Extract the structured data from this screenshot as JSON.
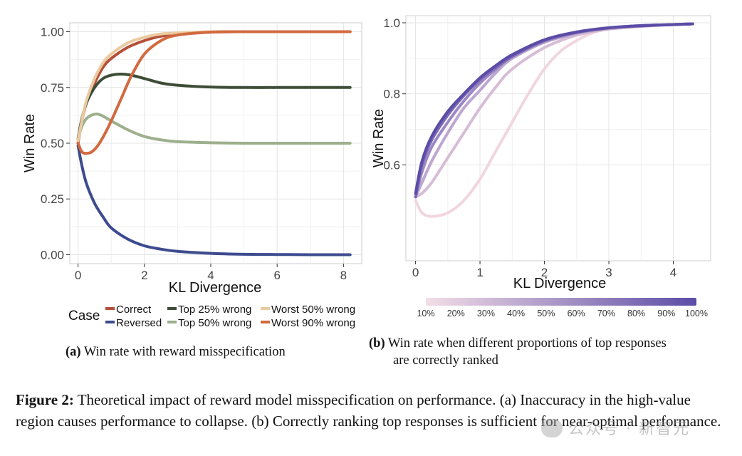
{
  "panel_a": {
    "caption_label": "(a)",
    "caption_text": "Win rate with reward misspecification",
    "legend_title": "Case",
    "legend": [
      {
        "name": "Correct",
        "color": "#B5503A"
      },
      {
        "name": "Reversed",
        "color": "#3D4B8F"
      },
      {
        "name": "Top 25% wrong",
        "color": "#3E4D37"
      },
      {
        "name": "Top 50% wrong",
        "color": "#9DAF8C"
      },
      {
        "name": "Worst 50% wrong",
        "color": "#EACAA0"
      },
      {
        "name": "Worst 90% wrong",
        "color": "#D26A3F"
      }
    ]
  },
  "panel_b": {
    "caption_label": "(b)",
    "caption_line1": "Win rate when different proportions of top responses",
    "caption_line2": "are correctly ranked"
  },
  "caption": {
    "label": "Figure 2:",
    "text": "Theoretical impact of reward model misspecification on performance. (a) Inaccuracy in the high-value region causes performance to collapse. (b) Correctly ranking top responses is sufficient for near-optimal performance."
  },
  "watermark": "公众号 · 新智元",
  "chart_data": [
    {
      "type": "line",
      "xlabel": "KL Divergence",
      "ylabel": "Win Rate",
      "xlim": [
        -0.25,
        8.55
      ],
      "ylim": [
        -0.04,
        1.04
      ],
      "xticks": [
        0,
        2,
        4,
        6,
        8
      ],
      "yticks": [
        0.0,
        0.25,
        0.5,
        0.75,
        1.0
      ],
      "ytick_labels": [
        "0.00",
        "0.25",
        "0.50",
        "0.75",
        "1.00"
      ],
      "grid": true,
      "legend_position": "bottom",
      "series": [
        {
          "name": "Correct",
          "color": "#B5503A",
          "x": [
            0,
            0.1,
            0.25,
            0.5,
            0.75,
            1.0,
            1.5,
            2.0,
            2.5,
            3.0,
            4.0,
            5.0,
            6.0,
            7.0,
            8.2
          ],
          "y": [
            0.5,
            0.59,
            0.68,
            0.77,
            0.84,
            0.88,
            0.93,
            0.96,
            0.98,
            0.99,
            0.998,
            1.0,
            1.0,
            1.0,
            1.0
          ]
        },
        {
          "name": "Reversed",
          "color": "#3D4B8F",
          "x": [
            0,
            0.1,
            0.25,
            0.5,
            0.75,
            1.0,
            1.5,
            2.0,
            2.5,
            3.0,
            4.0,
            5.0,
            6.0,
            7.0,
            8.2
          ],
          "y": [
            0.49,
            0.41,
            0.32,
            0.23,
            0.17,
            0.12,
            0.07,
            0.04,
            0.025,
            0.015,
            0.006,
            0.002,
            0.001,
            0.0,
            0.0
          ]
        },
        {
          "name": "Top 25% wrong",
          "color": "#3E4D37",
          "x": [
            0,
            0.1,
            0.25,
            0.5,
            0.75,
            1.0,
            1.3,
            1.6,
            2.0,
            2.5,
            3.0,
            4.0,
            5.0,
            6.0,
            7.0,
            8.2
          ],
          "y": [
            0.52,
            0.6,
            0.68,
            0.75,
            0.79,
            0.805,
            0.81,
            0.805,
            0.79,
            0.77,
            0.76,
            0.752,
            0.75,
            0.75,
            0.75,
            0.75
          ]
        },
        {
          "name": "Top 50% wrong",
          "color": "#9DAF8C",
          "x": [
            0,
            0.1,
            0.25,
            0.5,
            0.7,
            1.0,
            1.5,
            2.0,
            2.5,
            3.0,
            4.0,
            5.0,
            6.0,
            7.0,
            8.2
          ],
          "y": [
            0.52,
            0.57,
            0.61,
            0.63,
            0.625,
            0.6,
            0.56,
            0.53,
            0.515,
            0.507,
            0.502,
            0.5,
            0.5,
            0.5,
            0.5
          ]
        },
        {
          "name": "Worst 50% wrong",
          "color": "#EACAA0",
          "x": [
            0,
            0.1,
            0.25,
            0.5,
            0.75,
            1.0,
            1.5,
            2.0,
            2.5,
            3.0,
            4.0,
            5.0,
            6.0,
            7.0,
            8.2
          ],
          "y": [
            0.51,
            0.59,
            0.69,
            0.79,
            0.86,
            0.9,
            0.95,
            0.975,
            0.99,
            0.995,
            1.0,
            1.0,
            1.0,
            1.0,
            1.0
          ]
        },
        {
          "name": "Worst 90% wrong",
          "color": "#D26A3F",
          "x": [
            0,
            0.1,
            0.2,
            0.4,
            0.6,
            0.8,
            1.0,
            1.3,
            1.6,
            2.0,
            2.5,
            3.0,
            4.0,
            5.0,
            6.0,
            7.0,
            8.2
          ],
          "y": [
            0.5,
            0.465,
            0.455,
            0.46,
            0.49,
            0.54,
            0.6,
            0.7,
            0.8,
            0.9,
            0.96,
            0.985,
            0.998,
            1.0,
            1.0,
            1.0,
            1.0
          ]
        }
      ]
    },
    {
      "type": "line",
      "xlabel": "KL Divergence",
      "ylabel": "Win Rate",
      "xlim": [
        -0.15,
        4.58
      ],
      "ylim": [
        0.33,
        1.02
      ],
      "xticks": [
        0,
        1,
        2,
        3,
        4
      ],
      "yticks": [
        0.6,
        0.8,
        1.0
      ],
      "ytick_labels": [
        "0.6",
        "0.8",
        "1.0"
      ],
      "grid": true,
      "colorbar": {
        "labels": [
          "10%",
          "20%",
          "30%",
          "40%",
          "50%",
          "60%",
          "70%",
          "80%",
          "90%",
          "100%"
        ],
        "color_low": "#F3DDE6",
        "color_high": "#5B4CA6",
        "position": "bottom"
      },
      "series": [
        {
          "name": "10%",
          "color": "#F1D6DF",
          "x": [
            0,
            0.1,
            0.25,
            0.5,
            0.75,
            1.0,
            1.25,
            1.5,
            1.75,
            2.0,
            2.25,
            2.5,
            2.75,
            3.0,
            3.5,
            4.0,
            4.3
          ],
          "y": [
            0.5,
            0.465,
            0.455,
            0.465,
            0.5,
            0.56,
            0.64,
            0.72,
            0.8,
            0.87,
            0.92,
            0.95,
            0.972,
            0.982,
            0.99,
            0.995,
            0.997
          ]
        },
        {
          "name": "30%",
          "color": "#D6BDD5",
          "x": [
            0,
            0.1,
            0.25,
            0.5,
            0.75,
            1.0,
            1.25,
            1.5,
            2.0,
            2.5,
            3.0,
            3.5,
            4.0,
            4.3
          ],
          "y": [
            0.51,
            0.52,
            0.55,
            0.62,
            0.69,
            0.76,
            0.82,
            0.87,
            0.93,
            0.965,
            0.982,
            0.99,
            0.995,
            0.997
          ]
        },
        {
          "name": "50%",
          "color": "#BDA6CF",
          "x": [
            0,
            0.1,
            0.25,
            0.5,
            0.75,
            1.0,
            1.25,
            1.5,
            2.0,
            2.5,
            3.0,
            3.5,
            4.0,
            4.3
          ],
          "y": [
            0.51,
            0.55,
            0.61,
            0.69,
            0.76,
            0.81,
            0.86,
            0.9,
            0.945,
            0.97,
            0.984,
            0.99,
            0.995,
            0.997
          ]
        },
        {
          "name": "70%",
          "color": "#9C87C4",
          "x": [
            0,
            0.1,
            0.25,
            0.5,
            0.75,
            1.0,
            1.25,
            1.5,
            2.0,
            2.5,
            3.0,
            3.5,
            4.0,
            4.3
          ],
          "y": [
            0.51,
            0.58,
            0.65,
            0.72,
            0.78,
            0.83,
            0.87,
            0.905,
            0.948,
            0.972,
            0.985,
            0.991,
            0.995,
            0.997
          ]
        },
        {
          "name": "90%",
          "color": "#7A68B6",
          "x": [
            0,
            0.1,
            0.25,
            0.5,
            0.75,
            1.0,
            1.25,
            1.5,
            2.0,
            2.5,
            3.0,
            3.5,
            4.0,
            4.3
          ],
          "y": [
            0.51,
            0.6,
            0.67,
            0.74,
            0.795,
            0.84,
            0.875,
            0.905,
            0.95,
            0.973,
            0.986,
            0.992,
            0.995,
            0.997
          ]
        },
        {
          "name": "100%",
          "color": "#5B4CA6",
          "x": [
            0,
            0.1,
            0.25,
            0.5,
            0.75,
            1.0,
            1.25,
            1.5,
            2.0,
            2.5,
            3.0,
            3.5,
            4.0,
            4.3
          ],
          "y": [
            0.52,
            0.61,
            0.68,
            0.75,
            0.8,
            0.845,
            0.88,
            0.91,
            0.952,
            0.974,
            0.986,
            0.992,
            0.995,
            0.997
          ]
        }
      ]
    }
  ]
}
